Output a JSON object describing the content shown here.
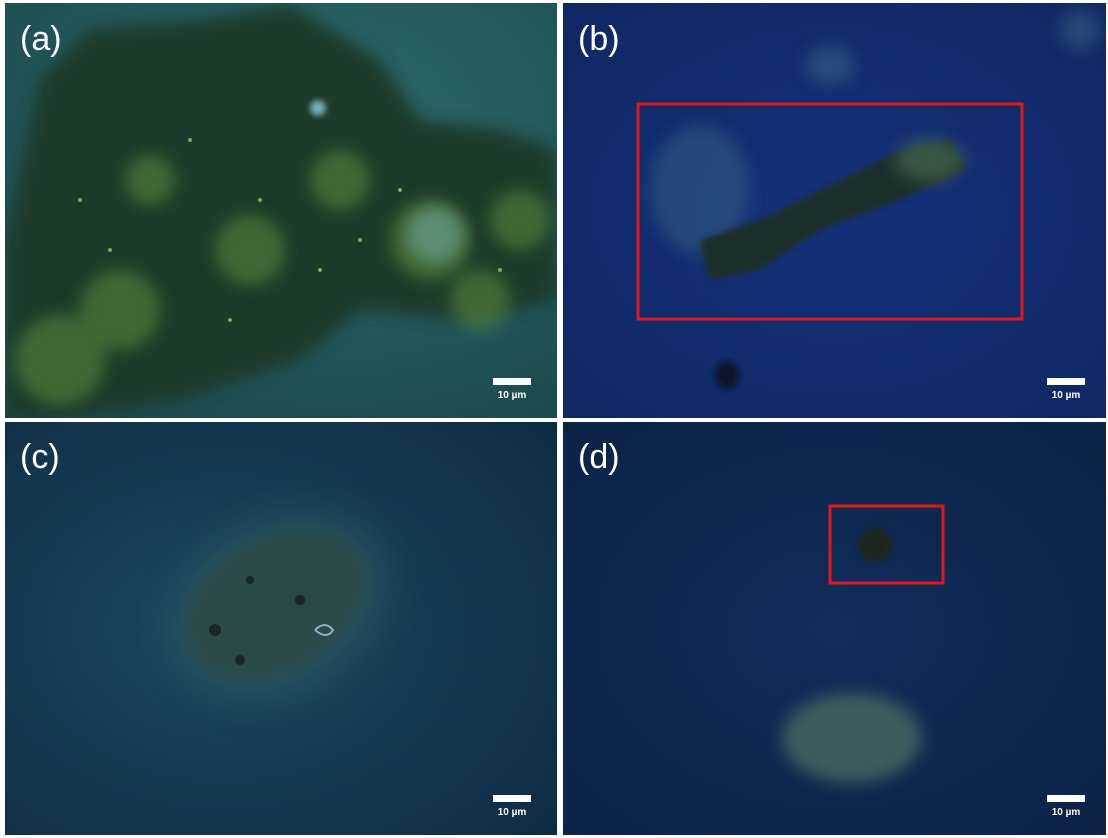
{
  "panels": [
    {
      "label": "(a)",
      "scale_bar": "10 µm"
    },
    {
      "label": "(b)",
      "scale_bar": "10 µm"
    },
    {
      "label": "(c)",
      "scale_bar": "10 µm"
    },
    {
      "label": "(d)",
      "scale_bar": "10 µm"
    }
  ]
}
